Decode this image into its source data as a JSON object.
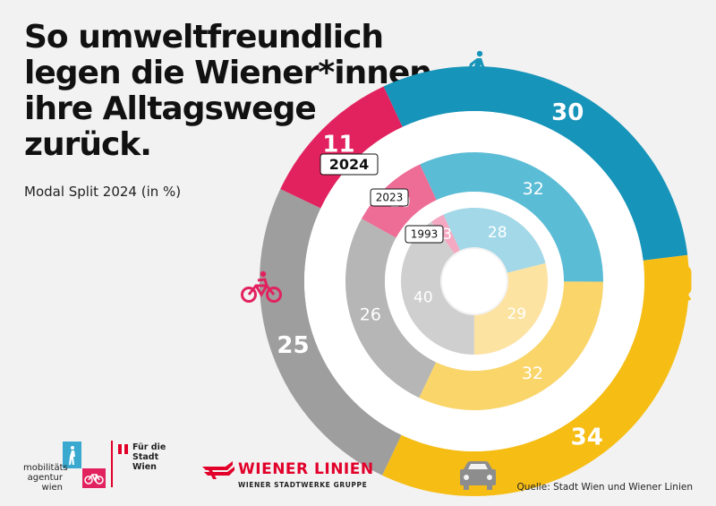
{
  "title_lines": [
    "So umweltfreundlich",
    "legen die Wiener*innen",
    "ihre Alltagswege",
    "zurück."
  ],
  "subtitle": "Modal Split 2024 (in %)",
  "source": "Quelle: Stadt Wien und Wiener Linien",
  "logos": {
    "mobilitaetsagentur": [
      "mobilitäts",
      "agentur",
      "wien"
    ],
    "stadt_wien": [
      "Für die",
      "Stadt Wien"
    ],
    "wiener_linien": "WIENER LINIEN",
    "wiener_linien_sub": "WIENER STADTWERKE GRUPPE"
  },
  "colors": {
    "walk": [
      "#1794b9",
      "#5bbcd6",
      "#a3d8e8"
    ],
    "public_transport": [
      "#f6bd15",
      "#fad56a",
      "#fde3a1"
    ],
    "car": [
      "#9e9e9e",
      "#b6b6b6",
      "#cfcfcf"
    ],
    "bike": [
      "#e2225e",
      "#ee6d96",
      "#f5a8c1"
    ]
  },
  "icons": {
    "walk": "pedestrian-icon",
    "public_transport": "tram-icon",
    "car": "car-icon",
    "bike": "bicycle-icon"
  },
  "chart_data": {
    "type": "pie",
    "subtype": "nested-donut",
    "title": "So umweltfreundlich legen die Wiener*innen ihre Alltagswege zurück.",
    "subtitle": "Modal Split 2024 (in %)",
    "unit": "%",
    "categories": [
      "Zu Fuß",
      "Öffentlicher Verkehr",
      "Auto",
      "Fahrrad"
    ],
    "series": [
      {
        "name": "2024",
        "values": [
          30,
          34,
          25,
          11
        ]
      },
      {
        "name": "2023",
        "values": [
          32,
          32,
          26,
          10
        ]
      },
      {
        "name": "1993",
        "values": [
          28,
          29,
          40,
          3
        ]
      }
    ]
  }
}
